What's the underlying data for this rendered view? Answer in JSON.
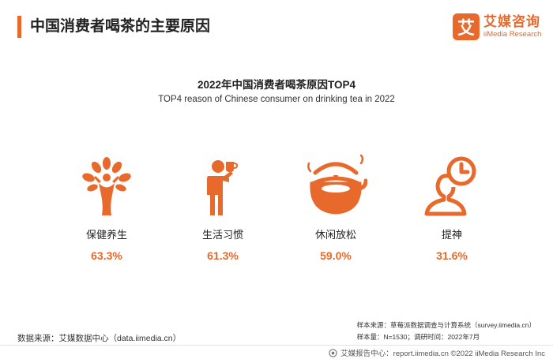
{
  "header": {
    "title": "中国消费者喝茶的主要原因"
  },
  "logo": {
    "mark": "艾",
    "cn": "艾媒咨询",
    "en": "iiMedia Research"
  },
  "chart_data": {
    "type": "table",
    "title": "2022年中国消费者喝茶原因TOP4",
    "subtitle": "TOP4 reason of Chinese consumer on drinking tea in 2022",
    "categories": [
      "保健养生",
      "生活习惯",
      "休闲放松",
      "提神"
    ],
    "values": [
      63.3,
      61.3,
      59.0,
      31.6
    ],
    "value_labels": [
      "63.3%",
      "61.3%",
      "59.0%",
      "31.6%"
    ],
    "icons": [
      "tree-person-icon",
      "person-drinking-icon",
      "teapot-icon",
      "person-clock-icon"
    ],
    "accent_color": "#e8692c"
  },
  "source": {
    "left": "数据来源：艾媒数据中心（data.iimedia.cn）",
    "right_line1": "样本来源：草莓派数据调查与计算系统（survey.iimedia.cn）",
    "right_line2": "样本量：N=1530；调研时间：2022年7月"
  },
  "footer": {
    "text": "艾媒报告中心：report.iimedia.cn  ©2022  iiMedia Research  Inc"
  }
}
